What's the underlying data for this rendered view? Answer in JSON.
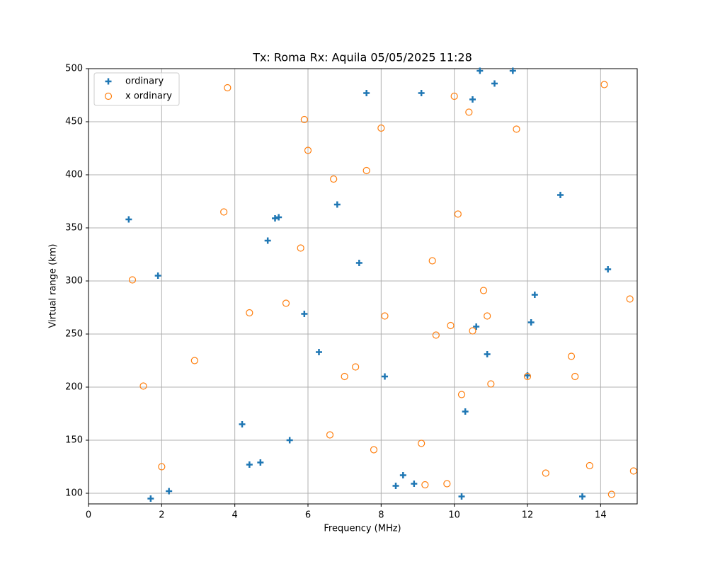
{
  "chart_data": {
    "type": "scatter",
    "title": "Tx: Roma Rx: Aquila 05/05/2025 11:28",
    "x_label": "Frequency (MHz)",
    "y_label": "Virtual range (km)",
    "xlim": [
      0,
      15
    ],
    "ylim": [
      90,
      500
    ],
    "xticks": [
      0,
      2,
      4,
      6,
      8,
      10,
      12,
      14
    ],
    "yticks": [
      100,
      150,
      200,
      250,
      300,
      350,
      400,
      450,
      500
    ],
    "grid": true,
    "legend": "upper left",
    "series": [
      {
        "name": "ordinary",
        "color": "#1f77b4",
        "marker": "plus",
        "x": [
          1.1,
          1.9,
          1.7,
          2.2,
          4.2,
          4.4,
          4.7,
          4.9,
          5.1,
          5.2,
          5.5,
          5.9,
          6.3,
          6.8,
          7.4,
          7.6,
          8.1,
          8.4,
          8.6,
          8.9,
          9.1,
          10.2,
          10.3,
          10.5,
          10.6,
          10.7,
          10.9,
          11.1,
          11.6,
          12.0,
          12.1,
          12.2,
          12.9,
          13.5,
          14.2
        ],
        "values": [
          358,
          305,
          95,
          102,
          165,
          127,
          129,
          338,
          359,
          360,
          150,
          269,
          233,
          372,
          317,
          477,
          210,
          107,
          117,
          109,
          477,
          97,
          177,
          471,
          257,
          498,
          231,
          486,
          498,
          211,
          261,
          287,
          381,
          97,
          311
        ]
      },
      {
        "name": "x ordinary",
        "color": "#ff7f0e",
        "marker": "circle",
        "x": [
          1.2,
          1.5,
          2.0,
          2.9,
          3.7,
          3.8,
          4.4,
          5.4,
          5.8,
          5.9,
          6.0,
          6.6,
          6.7,
          7.0,
          7.3,
          7.6,
          7.8,
          8.0,
          8.1,
          9.1,
          9.2,
          9.4,
          9.5,
          9.8,
          9.9,
          10.0,
          10.1,
          10.2,
          10.4,
          10.5,
          10.8,
          10.9,
          11.0,
          11.7,
          12.0,
          12.5,
          13.2,
          13.3,
          13.7,
          14.1,
          14.3,
          14.8,
          14.9
        ],
        "values": [
          301,
          201,
          125,
          225,
          365,
          482,
          270,
          279,
          331,
          452,
          423,
          155,
          396,
          210,
          219,
          404,
          141,
          444,
          267,
          147,
          108,
          319,
          249,
          109,
          258,
          474,
          363,
          193,
          459,
          253,
          291,
          267,
          203,
          443,
          210,
          119,
          229,
          210,
          126,
          485,
          99,
          283,
          121
        ]
      }
    ]
  }
}
